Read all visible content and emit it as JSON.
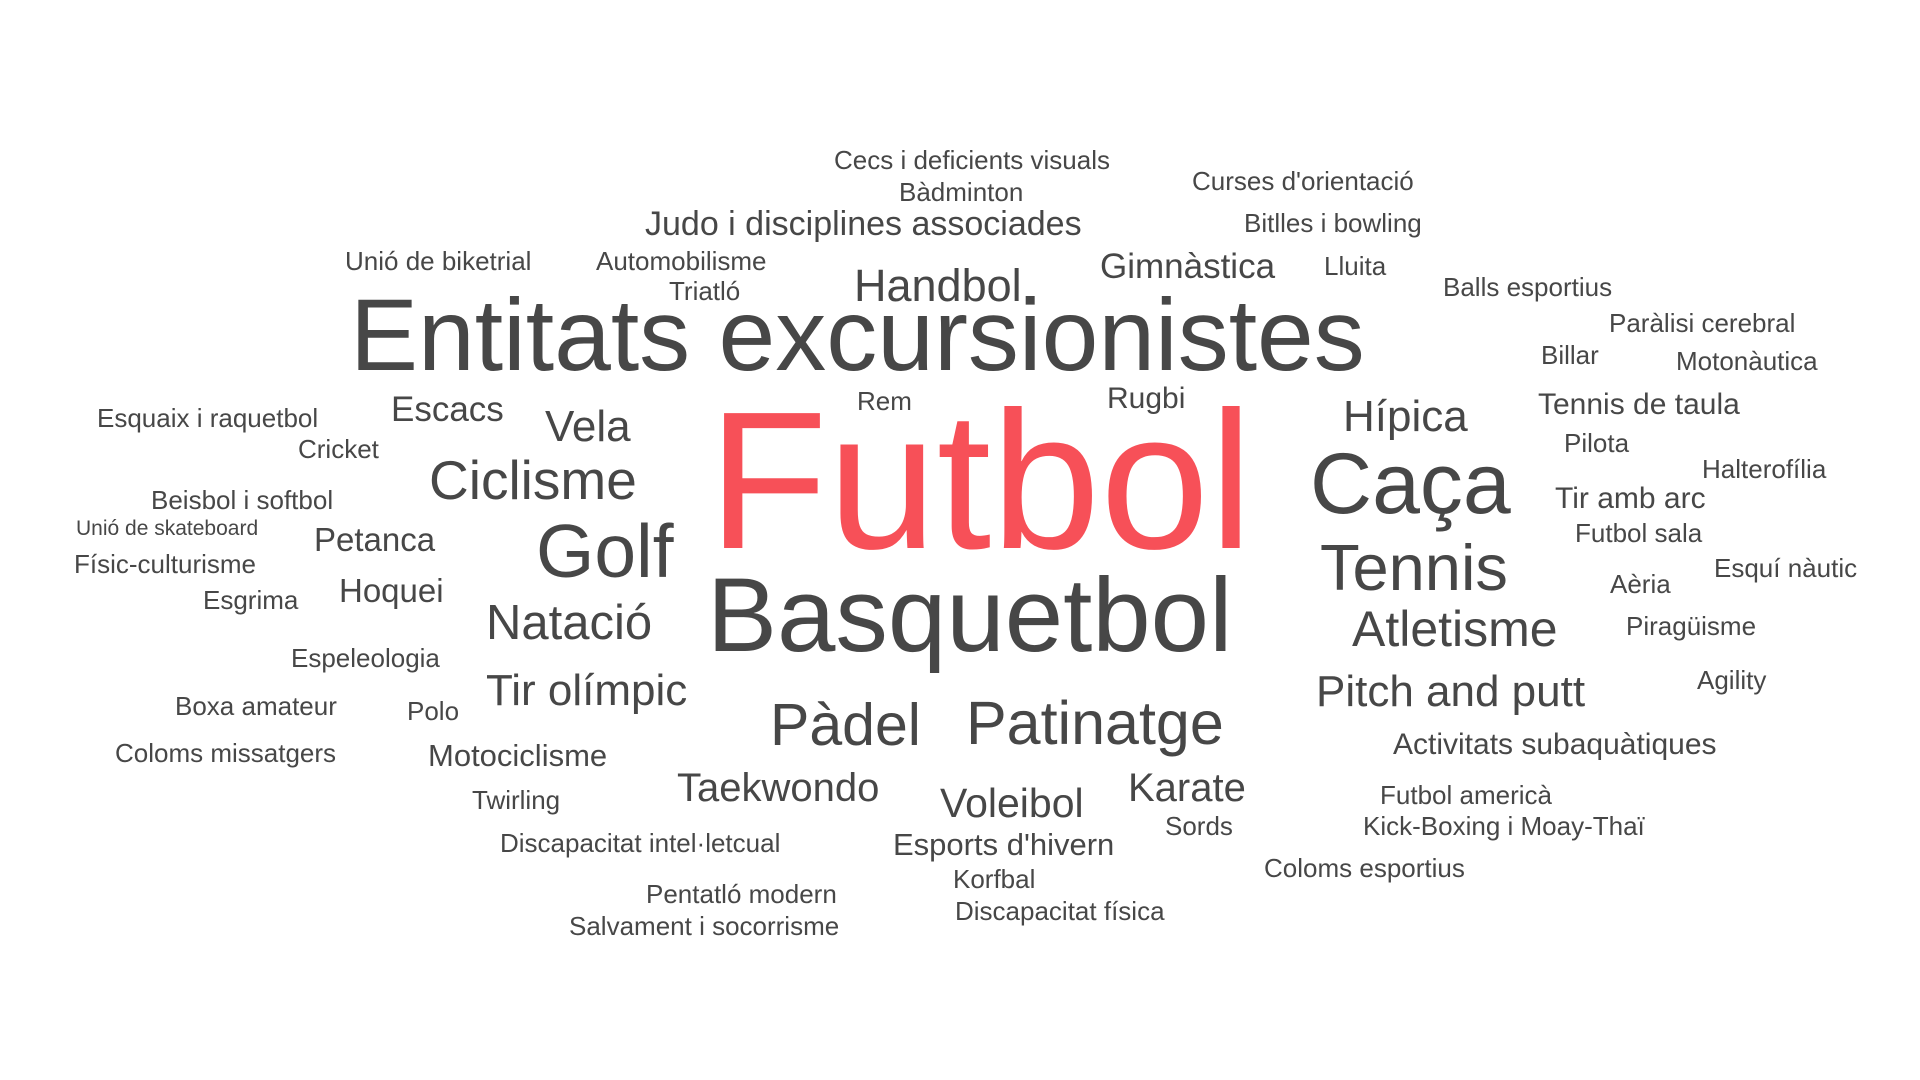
{
  "colors": {
    "default": "#474747",
    "highlight": "#f75058",
    "background": "#ffffff"
  },
  "words": [
    {
      "id": "futbol",
      "text": "Futbol",
      "highlight": true
    },
    {
      "id": "entitats-excursionistes",
      "text": "Entitats excursionistes"
    },
    {
      "id": "basquetbol",
      "text": "Basquetbol"
    },
    {
      "id": "caca",
      "text": "Caça"
    },
    {
      "id": "golf",
      "text": "Golf"
    },
    {
      "id": "tennis",
      "text": "Tennis"
    },
    {
      "id": "ciclisme",
      "text": "Ciclisme"
    },
    {
      "id": "patinatge",
      "text": "Patinatge"
    },
    {
      "id": "padel",
      "text": "Pàdel"
    },
    {
      "id": "natacio",
      "text": "Natació"
    },
    {
      "id": "atletisme",
      "text": "Atletisme"
    },
    {
      "id": "handbol",
      "text": "Handbol"
    },
    {
      "id": "hipica",
      "text": "Hípica"
    },
    {
      "id": "pitch-and-putt",
      "text": "Pitch and putt"
    },
    {
      "id": "tir-olimpic",
      "text": "Tir olímpic"
    },
    {
      "id": "vela",
      "text": "Vela"
    },
    {
      "id": "voleibol",
      "text": "Voleibol"
    },
    {
      "id": "karate",
      "text": "Karate"
    },
    {
      "id": "taekwondo",
      "text": "Taekwondo"
    },
    {
      "id": "judo",
      "text": "Judo i disciplines associades"
    },
    {
      "id": "gimnastica",
      "text": "Gimnàstica"
    },
    {
      "id": "escacs",
      "text": "Escacs"
    },
    {
      "id": "petanca",
      "text": "Petanca"
    },
    {
      "id": "hoquei",
      "text": "Hoquei"
    },
    {
      "id": "esports-hivern",
      "text": "Esports d'hivern"
    },
    {
      "id": "motociclisme",
      "text": "Motociclisme"
    },
    {
      "id": "activitats-subaquatiques",
      "text": "Activitats subaquàtiques"
    },
    {
      "id": "tennis-de-taula",
      "text": "Tennis de taula"
    },
    {
      "id": "tir-amb-arc",
      "text": "Tir amb arc"
    },
    {
      "id": "rugbi",
      "text": "Rugbi"
    },
    {
      "id": "cecs",
      "text": "Cecs i deficients visuals"
    },
    {
      "id": "badminton",
      "text": "Bàdminton"
    },
    {
      "id": "curses-orientacio",
      "text": "Curses d'orientació"
    },
    {
      "id": "bitlles-bowling",
      "text": "Bitlles i bowling"
    },
    {
      "id": "unio-biketrial",
      "text": "Unió de biketrial"
    },
    {
      "id": "automobilisme",
      "text": "Automobilisme"
    },
    {
      "id": "triatlo",
      "text": "Triatló"
    },
    {
      "id": "lluita",
      "text": "Lluita"
    },
    {
      "id": "balls-esportius",
      "text": "Balls esportius"
    },
    {
      "id": "paralisi-cerebral",
      "text": "Paràlisi cerebral"
    },
    {
      "id": "billar",
      "text": "Billar"
    },
    {
      "id": "motonautica",
      "text": "Motonàutica"
    },
    {
      "id": "esquaix",
      "text": "Esquaix i raquetbol"
    },
    {
      "id": "cricket",
      "text": "Cricket"
    },
    {
      "id": "rem",
      "text": "Rem"
    },
    {
      "id": "pilota",
      "text": "Pilota"
    },
    {
      "id": "halterofilia",
      "text": "Halterofília"
    },
    {
      "id": "beisbol",
      "text": "Beisbol i softbol"
    },
    {
      "id": "unio-skateboard",
      "text": "Unió de skateboard"
    },
    {
      "id": "futbol-sala",
      "text": "Futbol sala"
    },
    {
      "id": "fisic-culturisme",
      "text": "Físic-culturisme"
    },
    {
      "id": "aeria",
      "text": "Aèria"
    },
    {
      "id": "esqui-nautic",
      "text": "Esquí nàutic"
    },
    {
      "id": "esgrima",
      "text": "Esgrima"
    },
    {
      "id": "piraguisme",
      "text": "Piragüisme"
    },
    {
      "id": "espeleologia",
      "text": "Espeleologia"
    },
    {
      "id": "agility",
      "text": "Agility"
    },
    {
      "id": "boxa-amateur",
      "text": "Boxa amateur"
    },
    {
      "id": "polo",
      "text": "Polo"
    },
    {
      "id": "coloms-missatgers",
      "text": "Coloms missatgers"
    },
    {
      "id": "twirling",
      "text": "Twirling"
    },
    {
      "id": "futbol-america",
      "text": "Futbol americà"
    },
    {
      "id": "sords",
      "text": "Sords"
    },
    {
      "id": "kick-boxing",
      "text": "Kick-Boxing i Moay-Thaï"
    },
    {
      "id": "discapacitat-intel",
      "text": "Discapacitat intel·letcual"
    },
    {
      "id": "coloms-esportius",
      "text": "Coloms esportius"
    },
    {
      "id": "korfbal",
      "text": "Korfbal"
    },
    {
      "id": "pentatlo",
      "text": "Pentatló modern"
    },
    {
      "id": "discapacitat-fisica",
      "text": "Discapacitat física"
    },
    {
      "id": "salvament",
      "text": "Salvament i socorrisme"
    }
  ]
}
